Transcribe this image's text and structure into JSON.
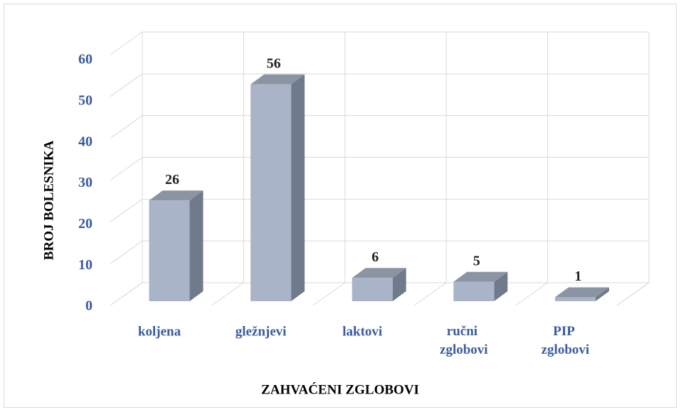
{
  "chart_data": {
    "type": "bar3d",
    "x_label": "ZAHVAĆENI ZGLOBOVI",
    "y_label": "BROJ BOLESNIKA",
    "categories": [
      "koljena",
      "gležnjevi",
      "laktovi",
      "ručni zglobovi",
      "PIP zglobovi"
    ],
    "values": [
      26,
      56,
      6,
      5,
      1
    ],
    "color": "#a9b4c8",
    "ylim": [
      0,
      60
    ],
    "yticks": [
      0,
      10,
      20,
      30,
      40,
      50,
      60
    ],
    "grid": true
  }
}
